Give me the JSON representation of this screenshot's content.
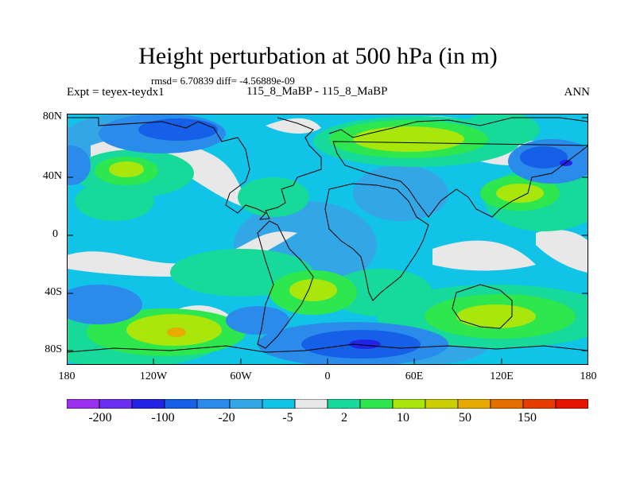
{
  "title": "Height perturbation at 500 hPa (in m)",
  "stats": "rmsd= 6.70839 diff= -4.56889e-09",
  "experiment": "Expt = teyex-teydx1",
  "case_label": "115_8_MaBP - 115_8_MaBP",
  "season": "ANN",
  "y_axis": {
    "ticks": [
      "80N",
      "40N",
      "0",
      "40S",
      "80S"
    ]
  },
  "x_axis": {
    "ticks": [
      "180",
      "120W",
      "60W",
      "0",
      "60E",
      "120E",
      "180"
    ]
  },
  "colorbar": {
    "colors": [
      "#9b30f0",
      "#6a2ff0",
      "#2323e6",
      "#1560e6",
      "#2a8bea",
      "#33a6e6",
      "#12c3e8",
      "#e8e8e8",
      "#17d99a",
      "#2ee64e",
      "#a8e60c",
      "#cbcf00",
      "#e6aa00",
      "#e66e00",
      "#e63c00",
      "#e61400"
    ],
    "labels": [
      "-200",
      "-100",
      "-20",
      "-5",
      "2",
      "10",
      "50",
      "150"
    ]
  }
}
